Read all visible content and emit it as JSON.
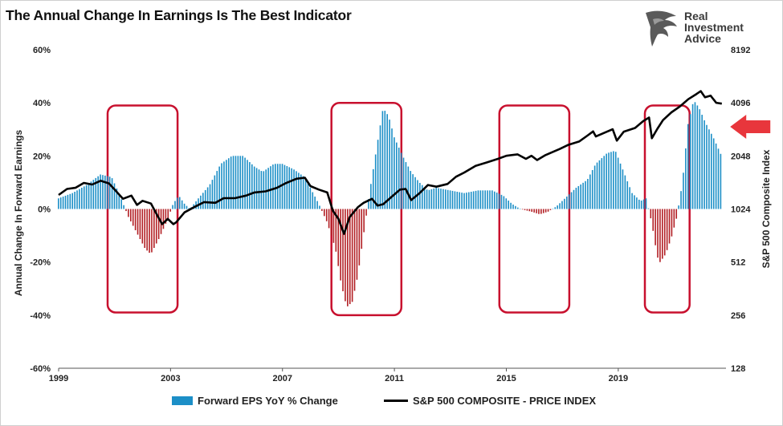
{
  "title": "The Annual Change In Earnings Is The Best Indicator",
  "logo": {
    "name": "eagle-logo",
    "lines": [
      "Real",
      "Investment",
      "Advice"
    ]
  },
  "colors": {
    "positive_bar": "#1c8fc7",
    "negative_bar": "#b21f24",
    "line": "#000000",
    "highlight_box": "#c8102e",
    "arrow": "#e8363c"
  },
  "chart_data": {
    "type": "bar+line",
    "title": "The Annual Change In Earnings Is The Best Indicator",
    "xlabel": "",
    "ylabel_left": "Annual Change In Forward Earnings",
    "ylabel_right": "S&P 500  Composite Index",
    "x_ticks": [
      "1999",
      "2003",
      "2007",
      "2011",
      "2015",
      "2019"
    ],
    "y_left_ticks": [
      "60%",
      "40%",
      "20%",
      "0%",
      "-20%",
      "-40%",
      "-60%"
    ],
    "y_left_range": [
      -60,
      60
    ],
    "y_right_ticks": [
      "8192",
      "4096",
      "2048",
      "1024",
      "512",
      "256",
      "128"
    ],
    "y_right_range": [
      128,
      8192
    ],
    "y_right_scale": "log2",
    "x_range": [
      1999.0,
      2022.85
    ],
    "grid": false,
    "legend_position": "bottom",
    "series": [
      {
        "name": "Forward EPS YoY % Change",
        "kind": "bar",
        "axis": "left",
        "points": [
          [
            1999.0,
            4
          ],
          [
            1999.5,
            6
          ],
          [
            2000.0,
            9
          ],
          [
            2000.5,
            13
          ],
          [
            2000.9,
            12
          ],
          [
            2001.2,
            5
          ],
          [
            2001.5,
            -3
          ],
          [
            2001.8,
            -9
          ],
          [
            2002.1,
            -15
          ],
          [
            2002.3,
            -17
          ],
          [
            2002.6,
            -11
          ],
          [
            2002.9,
            -4
          ],
          [
            2003.1,
            2
          ],
          [
            2003.3,
            5
          ],
          [
            2003.5,
            2
          ],
          [
            2003.7,
            0
          ],
          [
            2004.0,
            4
          ],
          [
            2004.4,
            9
          ],
          [
            2004.8,
            17
          ],
          [
            2005.2,
            20
          ],
          [
            2005.6,
            20
          ],
          [
            2006.0,
            16
          ],
          [
            2006.3,
            14
          ],
          [
            2006.7,
            17
          ],
          [
            2007.0,
            17
          ],
          [
            2007.4,
            15
          ],
          [
            2007.8,
            12
          ],
          [
            2008.0,
            8
          ],
          [
            2008.3,
            2
          ],
          [
            2008.6,
            -5
          ],
          [
            2008.9,
            -15
          ],
          [
            2009.1,
            -28
          ],
          [
            2009.3,
            -37
          ],
          [
            2009.5,
            -35
          ],
          [
            2009.7,
            -25
          ],
          [
            2009.9,
            -10
          ],
          [
            2010.1,
            5
          ],
          [
            2010.4,
            25
          ],
          [
            2010.6,
            38
          ],
          [
            2010.8,
            35
          ],
          [
            2011.0,
            27
          ],
          [
            2011.3,
            20
          ],
          [
            2011.6,
            14
          ],
          [
            2011.9,
            10
          ],
          [
            2012.2,
            7
          ],
          [
            2012.5,
            8
          ],
          [
            2013.0,
            7
          ],
          [
            2013.5,
            6
          ],
          [
            2014.0,
            7
          ],
          [
            2014.5,
            7
          ],
          [
            2014.9,
            5
          ],
          [
            2015.2,
            2
          ],
          [
            2015.5,
            0
          ],
          [
            2015.9,
            -1
          ],
          [
            2016.2,
            -2
          ],
          [
            2016.5,
            -1
          ],
          [
            2016.8,
            1
          ],
          [
            2017.1,
            4
          ],
          [
            2017.5,
            8
          ],
          [
            2017.9,
            11
          ],
          [
            2018.2,
            17
          ],
          [
            2018.6,
            21
          ],
          [
            2018.9,
            22
          ],
          [
            2019.2,
            14
          ],
          [
            2019.5,
            6
          ],
          [
            2019.8,
            3
          ],
          [
            2020.0,
            4
          ],
          [
            2020.2,
            -5
          ],
          [
            2020.4,
            -18
          ],
          [
            2020.5,
            -20
          ],
          [
            2020.7,
            -17
          ],
          [
            2020.9,
            -11
          ],
          [
            2021.1,
            -3
          ],
          [
            2021.3,
            10
          ],
          [
            2021.5,
            32
          ],
          [
            2021.7,
            41
          ],
          [
            2021.9,
            38
          ],
          [
            2022.1,
            33
          ],
          [
            2022.4,
            27
          ],
          [
            2022.7,
            20
          ]
        ]
      },
      {
        "name": "S&P 500 COMPOSITE - PRICE INDEX",
        "kind": "line",
        "axis": "right",
        "points": [
          [
            1999.0,
            1230
          ],
          [
            1999.3,
            1330
          ],
          [
            1999.6,
            1350
          ],
          [
            1999.9,
            1440
          ],
          [
            2000.2,
            1410
          ],
          [
            2000.5,
            1480
          ],
          [
            2000.8,
            1430
          ],
          [
            2001.0,
            1320
          ],
          [
            2001.3,
            1170
          ],
          [
            2001.6,
            1220
          ],
          [
            2001.8,
            1080
          ],
          [
            2002.0,
            1140
          ],
          [
            2002.3,
            1100
          ],
          [
            2002.5,
            960
          ],
          [
            2002.7,
            840
          ],
          [
            2002.9,
            900
          ],
          [
            2003.1,
            840
          ],
          [
            2003.2,
            860
          ],
          [
            2003.5,
            980
          ],
          [
            2003.9,
            1060
          ],
          [
            2004.2,
            1120
          ],
          [
            2004.6,
            1110
          ],
          [
            2004.9,
            1180
          ],
          [
            2005.3,
            1180
          ],
          [
            2005.7,
            1220
          ],
          [
            2006.0,
            1270
          ],
          [
            2006.4,
            1290
          ],
          [
            2006.8,
            1350
          ],
          [
            2007.1,
            1430
          ],
          [
            2007.5,
            1520
          ],
          [
            2007.8,
            1540
          ],
          [
            2008.0,
            1380
          ],
          [
            2008.3,
            1320
          ],
          [
            2008.6,
            1270
          ],
          [
            2008.8,
            1000
          ],
          [
            2009.0,
            900
          ],
          [
            2009.2,
            740
          ],
          [
            2009.4,
            920
          ],
          [
            2009.7,
            1050
          ],
          [
            2009.9,
            1110
          ],
          [
            2010.2,
            1170
          ],
          [
            2010.4,
            1070
          ],
          [
            2010.6,
            1090
          ],
          [
            2010.9,
            1200
          ],
          [
            2011.2,
            1320
          ],
          [
            2011.4,
            1330
          ],
          [
            2011.6,
            1150
          ],
          [
            2011.9,
            1260
          ],
          [
            2012.2,
            1400
          ],
          [
            2012.5,
            1370
          ],
          [
            2012.9,
            1420
          ],
          [
            2013.2,
            1560
          ],
          [
            2013.5,
            1650
          ],
          [
            2013.9,
            1800
          ],
          [
            2014.3,
            1880
          ],
          [
            2014.7,
            1970
          ],
          [
            2015.0,
            2050
          ],
          [
            2015.4,
            2090
          ],
          [
            2015.7,
            1970
          ],
          [
            2015.9,
            2050
          ],
          [
            2016.1,
            1940
          ],
          [
            2016.4,
            2070
          ],
          [
            2016.7,
            2170
          ],
          [
            2016.9,
            2240
          ],
          [
            2017.2,
            2360
          ],
          [
            2017.6,
            2470
          ],
          [
            2017.9,
            2670
          ],
          [
            2018.1,
            2820
          ],
          [
            2018.2,
            2640
          ],
          [
            2018.6,
            2810
          ],
          [
            2018.8,
            2900
          ],
          [
            2018.95,
            2500
          ],
          [
            2019.2,
            2810
          ],
          [
            2019.6,
            2950
          ],
          [
            2019.9,
            3230
          ],
          [
            2020.1,
            3380
          ],
          [
            2020.2,
            2580
          ],
          [
            2020.4,
            2920
          ],
          [
            2020.6,
            3270
          ],
          [
            2020.9,
            3620
          ],
          [
            2021.2,
            3900
          ],
          [
            2021.5,
            4290
          ],
          [
            2021.8,
            4600
          ],
          [
            2021.95,
            4770
          ],
          [
            2022.1,
            4400
          ],
          [
            2022.3,
            4500
          ],
          [
            2022.5,
            4100
          ],
          [
            2022.7,
            4050
          ]
        ]
      }
    ],
    "highlight_boxes": [
      {
        "x": [
          2000.75,
          2003.25
        ],
        "y": [
          -39,
          39
        ]
      },
      {
        "x": [
          2008.75,
          2011.25
        ],
        "y": [
          -40,
          40
        ]
      },
      {
        "x": [
          2014.75,
          2017.25
        ],
        "y": [
          -39,
          39
        ]
      },
      {
        "x": [
          2019.95,
          2021.55
        ],
        "y": [
          -39,
          39
        ]
      }
    ],
    "arrow": {
      "direction": "left",
      "x": 2023.0,
      "y": 31
    }
  },
  "legend": {
    "bars_label": "Forward EPS YoY % Change",
    "line_label": "S&P 500 COMPOSITE - PRICE INDEX"
  }
}
